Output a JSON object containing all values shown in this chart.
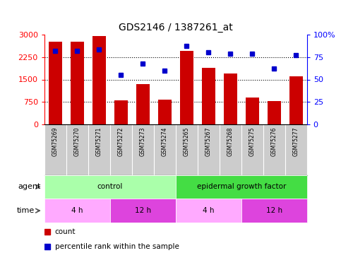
{
  "title": "GDS2146 / 1387261_at",
  "samples": [
    "GSM75269",
    "GSM75270",
    "GSM75271",
    "GSM75272",
    "GSM75273",
    "GSM75274",
    "GSM75265",
    "GSM75267",
    "GSM75268",
    "GSM75275",
    "GSM75276",
    "GSM75277"
  ],
  "counts": [
    2750,
    2750,
    2950,
    800,
    1350,
    820,
    2450,
    1900,
    1700,
    900,
    780,
    1600
  ],
  "percentile": [
    82,
    82,
    83,
    55,
    68,
    60,
    87,
    80,
    79,
    79,
    62,
    77
  ],
  "bar_color": "#cc0000",
  "dot_color": "#0000cc",
  "ylim_left": [
    0,
    3000
  ],
  "ylim_right": [
    0,
    100
  ],
  "yticks_left": [
    0,
    750,
    1500,
    2250,
    3000
  ],
  "yticks_right": [
    0,
    25,
    50,
    75,
    100
  ],
  "ytick_labels_right": [
    "0",
    "25",
    "50",
    "75",
    "100%"
  ],
  "agent_groups": [
    {
      "label": "control",
      "start": 0,
      "end": 6,
      "color": "#aaffaa"
    },
    {
      "label": "epidermal growth factor",
      "start": 6,
      "end": 12,
      "color": "#44dd44"
    }
  ],
  "time_groups": [
    {
      "label": "4 h",
      "start": 0,
      "end": 3,
      "color": "#ffaaff"
    },
    {
      "label": "12 h",
      "start": 3,
      "end": 6,
      "color": "#dd44dd"
    },
    {
      "label": "4 h",
      "start": 6,
      "end": 9,
      "color": "#ffaaff"
    },
    {
      "label": "12 h",
      "start": 9,
      "end": 12,
      "color": "#dd44dd"
    }
  ],
  "legend_count_color": "#cc0000",
  "legend_dot_color": "#0000cc",
  "sample_bg_color": "#cccccc",
  "plot_bg_color": "#ffffff",
  "fig_bg_color": "#ffffff"
}
